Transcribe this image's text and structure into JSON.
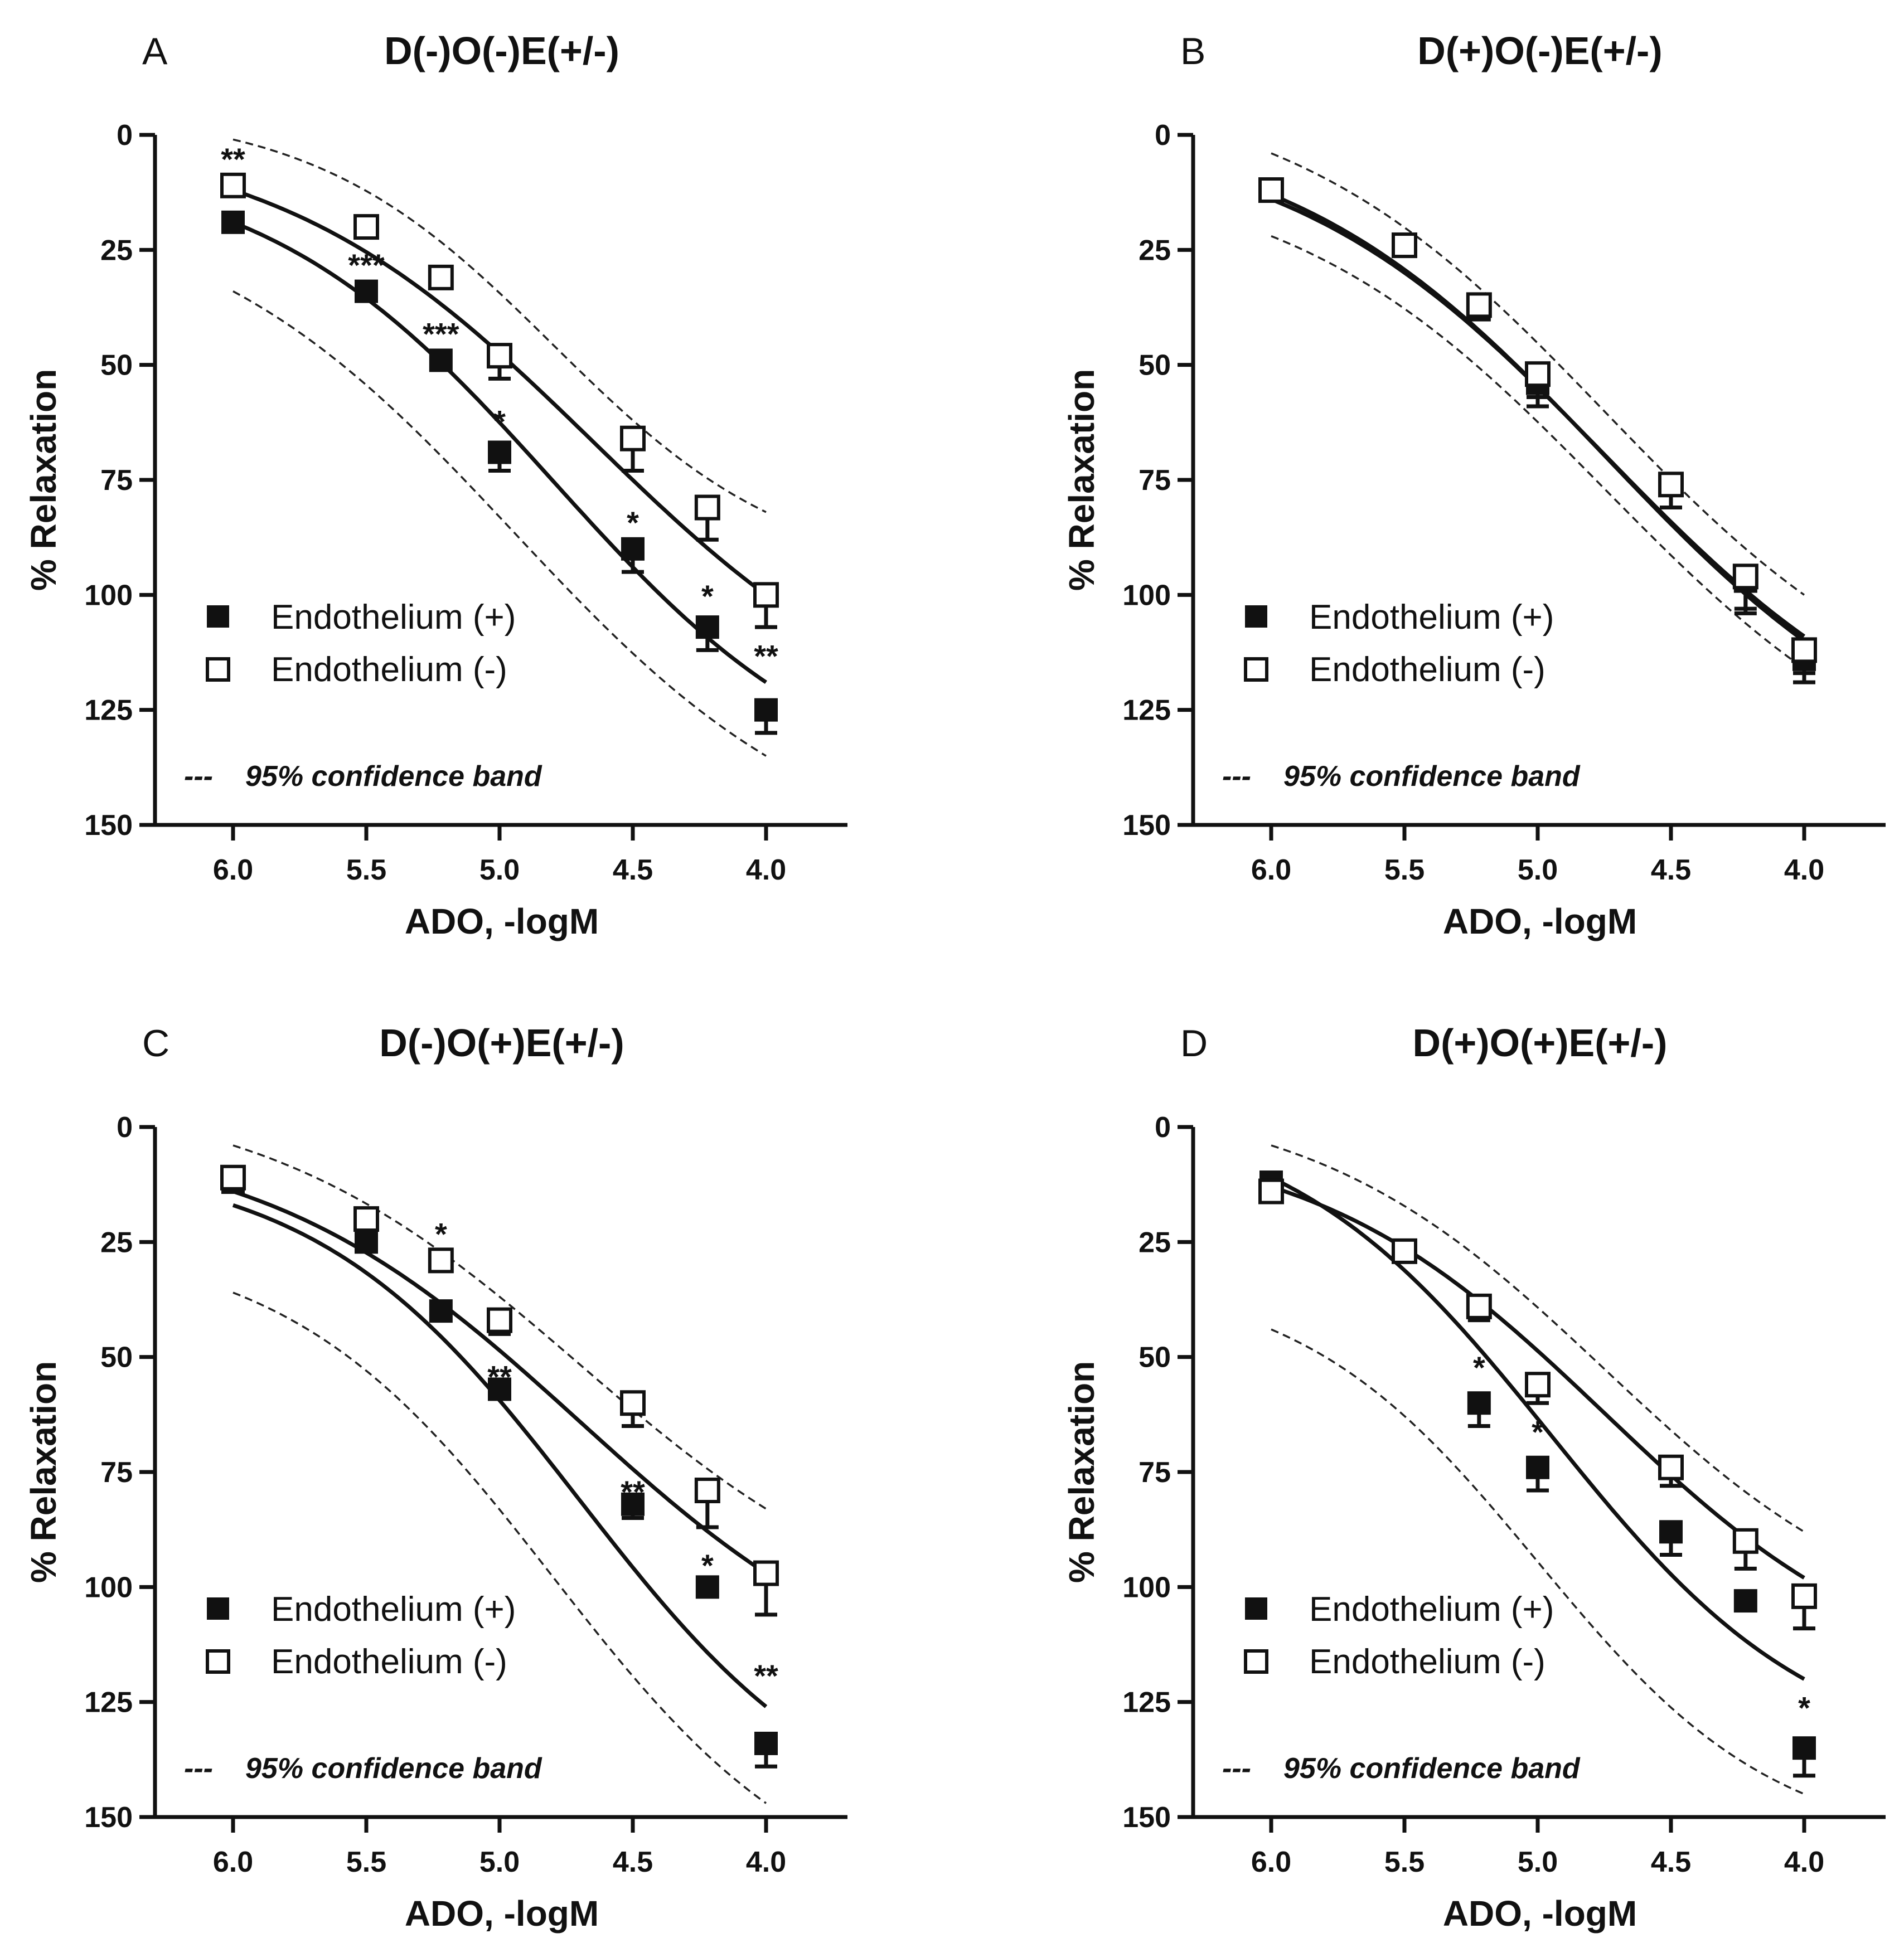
{
  "figure": {
    "x_axis_label": "ADO, -logM",
    "y_axis_label": "% Relaxation",
    "legend_filled": "Endothelium (+)",
    "legend_open": "Endothelium (-)",
    "band_note_dash": "---",
    "band_note": "95% confidence band"
  },
  "chart_data": [
    {
      "letter": "A",
      "title": "D(-)O(-)E(+/-)",
      "type": "scatter",
      "xlabel": "ADO, -logM",
      "ylabel": "% Relaxation",
      "x_ticks": [
        "6.0",
        "5.5",
        "5.0",
        "4.5",
        "4.0"
      ],
      "y_ticks": [
        "0",
        "25",
        "50",
        "75",
        "100",
        "125",
        "150"
      ],
      "xlim": [
        6.3,
        3.7
      ],
      "ylim": [
        150,
        0
      ],
      "y_inverted": true,
      "x": [
        6.0,
        5.5,
        5.22,
        5.0,
        4.5,
        4.22,
        4.0
      ],
      "series": [
        {
          "name": "Endothelium (+)",
          "marker": "filled-square",
          "values": [
            19,
            34,
            49,
            69,
            90,
            107,
            125
          ],
          "err": [
            1.5,
            1.5,
            2,
            4,
            5,
            5,
            5
          ]
        },
        {
          "name": "Endothelium (-)",
          "marker": "open-square",
          "values": [
            11,
            20,
            31,
            48,
            66,
            81,
            100
          ],
          "err": [
            1.5,
            1.5,
            2,
            5,
            7,
            7,
            7
          ]
        }
      ],
      "fit_curves": [
        {
          "series": "Endothelium (+)",
          "y_at_6": 19,
          "y_at_4": 119,
          "ec50": 4.8,
          "slope": 0.55,
          "start_x": 6.0
        },
        {
          "series": "Endothelium (-)",
          "y_at_6": 12,
          "y_at_4": 100,
          "ec50": 4.65,
          "slope": 0.6,
          "start_x": 6.0
        }
      ],
      "confidence_band": [
        {
          "y_at_6": 34,
          "y_at_4": 135,
          "ec50": 4.95,
          "slope": 0.6,
          "start_x": 6.0
        },
        {
          "y_at_6": 1,
          "y_at_4": 82,
          "ec50": 4.8,
          "slope": 0.45,
          "start_x": 6.0
        }
      ],
      "annotations": [
        {
          "x": 6.0,
          "y": 4,
          "text": "**"
        },
        {
          "x": 5.5,
          "y": 27,
          "text": "***"
        },
        {
          "x": 5.22,
          "y": 42,
          "text": "***"
        },
        {
          "x": 5.0,
          "y": 61,
          "text": "*"
        },
        {
          "x": 4.5,
          "y": 83,
          "text": "*"
        },
        {
          "x": 4.22,
          "y": 99,
          "text": "*"
        },
        {
          "x": 4.0,
          "y": 112,
          "text": "**"
        }
      ]
    },
    {
      "letter": "B",
      "title": "D(+)O(-)E(+/-)",
      "type": "scatter",
      "xlabel": "ADO, -logM",
      "ylabel": "% Relaxation",
      "x_ticks": [
        "6.0",
        "5.5",
        "5.0",
        "4.5",
        "4.0"
      ],
      "y_ticks": [
        "0",
        "25",
        "50",
        "75",
        "100",
        "125",
        "150"
      ],
      "xlim": [
        6.3,
        3.7
      ],
      "ylim": [
        150,
        0
      ],
      "y_inverted": true,
      "x": [
        6.0,
        5.5,
        5.22,
        5.0,
        4.5,
        4.22,
        4.0
      ],
      "series": [
        {
          "name": "Endothelium (+)",
          "marker": "filled-square",
          "values": [
            12,
            24,
            38,
            54,
            76,
            97,
            114
          ],
          "err": [
            1.5,
            1.5,
            2,
            5,
            5,
            6,
            5
          ]
        },
        {
          "name": "Endothelium (-)",
          "marker": "open-square",
          "values": [
            12,
            24,
            37,
            52,
            76,
            96,
            112
          ],
          "err": [
            1.5,
            1.5,
            2,
            5,
            5,
            8,
            5
          ]
        }
      ],
      "fit_curves": [
        {
          "series": "Endothelium (+)",
          "y_at_6": 13,
          "y_at_4": 110,
          "ec50": 4.75,
          "slope": 0.6,
          "start_x": 6.0
        },
        {
          "series": "Endothelium (-)",
          "y_at_6": 14,
          "y_at_4": 109,
          "ec50": 4.75,
          "slope": 0.6,
          "start_x": 6.0
        }
      ],
      "confidence_band": [
        {
          "y_at_6": 22,
          "y_at_4": 116,
          "ec50": 4.75,
          "slope": 0.6,
          "start_x": 6.0
        },
        {
          "y_at_6": 4,
          "y_at_4": 100,
          "ec50": 4.75,
          "slope": 0.6,
          "start_x": 6.0
        }
      ],
      "annotations": []
    },
    {
      "letter": "C",
      "title": "D(-)O(+)E(+/-)",
      "type": "scatter",
      "xlabel": "ADO, -logM",
      "ylabel": "% Relaxation",
      "x_ticks": [
        "6.0",
        "5.5",
        "5.0",
        "4.5",
        "4.0"
      ],
      "y_ticks": [
        "0",
        "25",
        "50",
        "75",
        "100",
        "125",
        "150"
      ],
      "xlim": [
        6.3,
        3.7
      ],
      "ylim": [
        150,
        0
      ],
      "y_inverted": true,
      "x": [
        6.0,
        5.5,
        5.22,
        5.0,
        4.5,
        4.22,
        4.0
      ],
      "series": [
        {
          "name": "Endothelium (+)",
          "marker": "filled-square",
          "values": [
            12,
            25,
            40,
            57,
            82,
            100,
            134
          ],
          "err": [
            1.5,
            1.5,
            2,
            2,
            3,
            1.5,
            5
          ]
        },
        {
          "name": "Endothelium (-)",
          "marker": "open-square",
          "values": [
            11,
            20,
            29,
            42,
            60,
            79,
            97
          ],
          "err": [
            1.5,
            1.5,
            2,
            3,
            5,
            8,
            9
          ]
        }
      ],
      "fit_curves": [
        {
          "series": "Endothelium (+)",
          "y_at_6": 17,
          "y_at_4": 126,
          "ec50": 4.7,
          "slope": 0.5,
          "start_x": 6.0
        },
        {
          "series": "Endothelium (-)",
          "y_at_6": 14,
          "y_at_4": 97,
          "ec50": 4.7,
          "slope": 0.6,
          "start_x": 6.0
        }
      ],
      "confidence_band": [
        {
          "y_at_6": 36,
          "y_at_4": 147,
          "ec50": 4.8,
          "slope": 0.5,
          "start_x": 6.0
        },
        {
          "y_at_6": 4,
          "y_at_4": 83,
          "ec50": 4.7,
          "slope": 0.6,
          "start_x": 6.0
        }
      ],
      "annotations": [
        {
          "x": 5.22,
          "y": 22,
          "text": "*"
        },
        {
          "x": 5.0,
          "y": 53,
          "text": "**"
        },
        {
          "x": 4.5,
          "y": 78,
          "text": "**"
        },
        {
          "x": 4.22,
          "y": 94,
          "text": "*"
        },
        {
          "x": 4.0,
          "y": 118,
          "text": "**"
        }
      ]
    },
    {
      "letter": "D",
      "title": "D(+)O(+)E(+/-)",
      "type": "scatter",
      "xlabel": "ADO, -logM",
      "ylabel": "% Relaxation",
      "x_ticks": [
        "6.0",
        "5.5",
        "5.0",
        "4.5",
        "4.0"
      ],
      "y_ticks": [
        "0",
        "25",
        "50",
        "75",
        "100",
        "125",
        "150"
      ],
      "xlim": [
        6.3,
        3.7
      ],
      "ylim": [
        150,
        0
      ],
      "y_inverted": true,
      "x": [
        6.0,
        5.5,
        5.22,
        5.0,
        4.5,
        4.22,
        4.0
      ],
      "series": [
        {
          "name": "Endothelium (+)",
          "marker": "filled-square",
          "values": [
            12,
            27,
            60,
            74,
            88,
            103,
            135
          ],
          "err": [
            1.5,
            2,
            5,
            5,
            5,
            1.5,
            6
          ]
        },
        {
          "name": "Endothelium (-)",
          "marker": "open-square",
          "values": [
            14,
            27,
            39,
            56,
            74,
            90,
            102
          ],
          "err": [
            1.5,
            2,
            3,
            4,
            4,
            6,
            7
          ]
        }
      ],
      "fit_curves": [
        {
          "series": "Endothelium (+)",
          "y_at_6": 11,
          "y_at_4": 120,
          "ec50": 4.95,
          "slope": 0.5,
          "start_x": 6.0
        },
        {
          "series": "Endothelium (-)",
          "y_at_6": 13,
          "y_at_4": 98,
          "ec50": 4.75,
          "slope": 0.55,
          "start_x": 6.0
        }
      ],
      "confidence_band": [
        {
          "y_at_6": 44,
          "y_at_4": 145,
          "ec50": 5.0,
          "slope": 0.45,
          "start_x": 6.0
        },
        {
          "y_at_6": 4,
          "y_at_4": 88,
          "ec50": 4.75,
          "slope": 0.55,
          "start_x": 6.0
        }
      ],
      "annotations": [
        {
          "x": 5.22,
          "y": 51,
          "text": "*"
        },
        {
          "x": 5.0,
          "y": 65,
          "text": "*"
        },
        {
          "x": 4.0,
          "y": 125,
          "text": "*"
        }
      ]
    }
  ]
}
